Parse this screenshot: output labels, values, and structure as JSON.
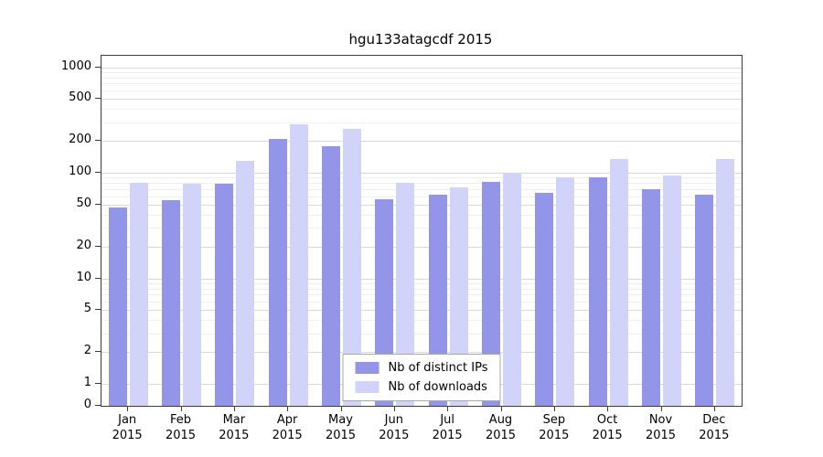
{
  "chart_data": {
    "type": "bar",
    "title": "hgu133atagcdf 2015",
    "xlabel": "",
    "ylabel": "",
    "yscale": "log (with zero baseline)",
    "yticks": [
      0,
      1,
      2,
      5,
      10,
      20,
      50,
      100,
      200,
      500,
      1000
    ],
    "ylim": [
      0,
      1280
    ],
    "grid": "horizontal major and minor",
    "legend_position": "lower center",
    "categories": [
      "Jan 2015",
      "Feb 2015",
      "Mar 2015",
      "Apr 2015",
      "May 2015",
      "Jun 2015",
      "Jul 2015",
      "Aug 2015",
      "Sep 2015",
      "Oct 2015",
      "Nov 2015",
      "Dec 2015"
    ],
    "series": [
      {
        "name": "Nb of distinct IPs",
        "color": "#9295e8",
        "values": [
          47,
          55,
          78,
          210,
          180,
          56,
          62,
          82,
          65,
          90,
          70,
          62
        ]
      },
      {
        "name": "Nb of downloads",
        "color": "#d2d3f8",
        "values": [
          80,
          78,
          130,
          285,
          260,
          80,
          73,
          100,
          90,
          135,
          95,
          135
        ]
      }
    ]
  }
}
